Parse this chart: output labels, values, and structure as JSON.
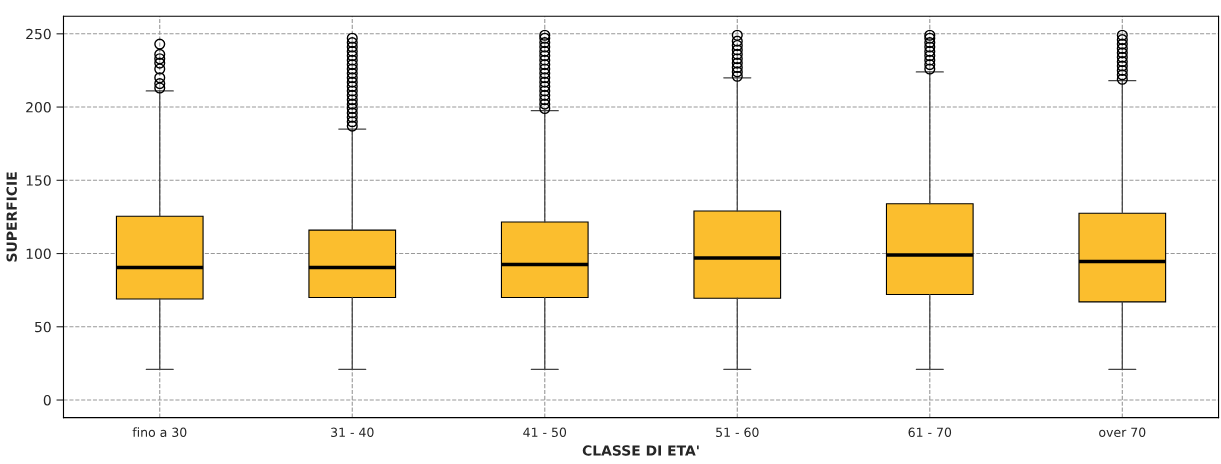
{
  "chart_data": {
    "type": "box",
    "xlabel": "CLASSE DI ETA'",
    "ylabel": "SUPERFICIE",
    "categories": [
      "fino a 30",
      "31 - 40",
      "41 - 50",
      "51 - 60",
      "61 - 70",
      "over 70"
    ],
    "color": "#fbbe2e",
    "boxes": [
      {
        "low": 21,
        "q1": 69,
        "median": 90.5,
        "q3": 125.5,
        "high": 211,
        "outliers": [
          213,
          216,
          220,
          226,
          230,
          233,
          236,
          243
        ]
      },
      {
        "low": 21,
        "q1": 70,
        "median": 90.5,
        "q3": 116,
        "high": 185,
        "outliers": [
          187,
          190,
          193,
          196,
          199,
          202,
          205,
          208,
          211,
          214,
          217,
          220,
          223,
          226,
          229,
          232,
          235,
          238,
          241,
          244,
          247
        ]
      },
      {
        "low": 21,
        "q1": 70,
        "median": 92.5,
        "q3": 121.5,
        "high": 197.5,
        "outliers": [
          199,
          202,
          205,
          208,
          211,
          214,
          217,
          220,
          223,
          226,
          229,
          232,
          235,
          238,
          241,
          244,
          247,
          249
        ]
      },
      {
        "low": 21,
        "q1": 69.5,
        "median": 97,
        "q3": 129,
        "high": 220,
        "outliers": [
          221,
          224,
          227,
          230,
          233,
          236,
          239,
          242,
          245,
          249
        ]
      },
      {
        "low": 21,
        "q1": 72,
        "median": 99,
        "q3": 134,
        "high": 224,
        "outliers": [
          226,
          229,
          232,
          235,
          238,
          241,
          244,
          247,
          249
        ]
      },
      {
        "low": 21,
        "q1": 67,
        "median": 94.5,
        "q3": 127.5,
        "high": 218,
        "outliers": [
          219,
          222,
          225,
          228,
          231,
          234,
          237,
          240,
          243,
          246,
          249
        ]
      }
    ],
    "ylim": [
      -12,
      262
    ],
    "yticks": [
      0,
      50,
      100,
      150,
      200,
      250
    ],
    "grid": true
  }
}
